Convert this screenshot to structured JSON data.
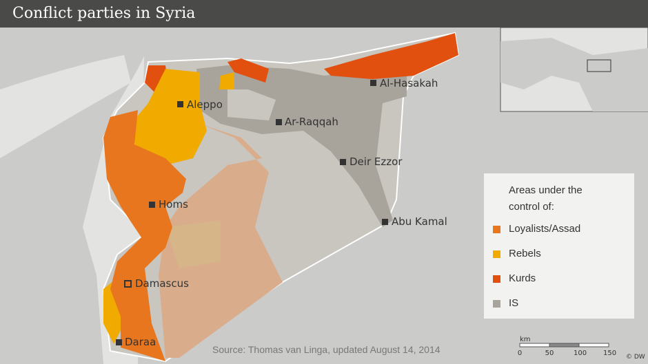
{
  "header": {
    "title": "Conflict parties in Syria"
  },
  "cities": [
    {
      "name": "Aleppo"
    },
    {
      "name": "Ar-Raqqah"
    },
    {
      "name": "Al-Hasakah"
    },
    {
      "name": "Deir Ezzor"
    },
    {
      "name": "Homs"
    },
    {
      "name": "Abu Kamal"
    },
    {
      "name": "Damascus"
    },
    {
      "name": "Daraa"
    }
  ],
  "legend": {
    "title": "Areas under the control of:",
    "items": [
      {
        "name": "Loyalists/Assad",
        "color": "#e8761e"
      },
      {
        "name": "Rebels",
        "color": "#f0aa00"
      },
      {
        "name": "Kurds",
        "color": "#e2500f"
      },
      {
        "name": "IS",
        "color": "#a8a39b"
      }
    ]
  },
  "source": "Source: Thomas van Linga, updated August 14, 2014",
  "scale": {
    "unit": "km",
    "ticks": [
      0,
      50,
      100,
      150
    ]
  },
  "credit": "© DW"
}
